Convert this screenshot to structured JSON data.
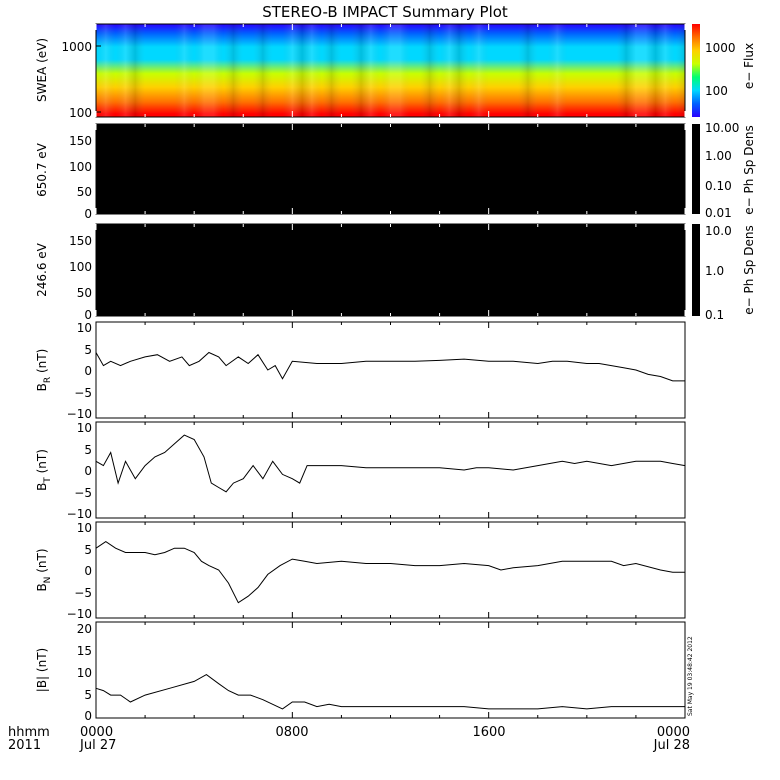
{
  "title": "STEREO-B IMPACT Summary Plot",
  "timestamp": "Sat May 19 03:48:42 2012",
  "time_axis": {
    "label_top": "hhmm",
    "label_bottom": "2011",
    "range_hours": [
      0,
      24
    ],
    "ticks": [
      {
        "hour": 0,
        "time": "0000",
        "date": "Jul 27"
      },
      {
        "hour": 8,
        "time": "0800",
        "date": ""
      },
      {
        "hour": 16,
        "time": "1600",
        "date": ""
      },
      {
        "hour": 24,
        "time": "0000",
        "date": "Jul 28"
      }
    ]
  },
  "colors": {
    "flux_scale": [
      "#2a00ff",
      "#0060ff",
      "#00d8ff",
      "#00ff70",
      "#c8ff00",
      "#ffd000",
      "#ff7000",
      "#ff0000"
    ],
    "spectrogram_bg": "#000000",
    "line": "#000000"
  },
  "panels": {
    "swea": {
      "ylabel": "SWEA (eV)",
      "yticks": [
        "1000",
        "100"
      ],
      "colorbar_label": "e− Flux",
      "colorbar_ticks": [
        "1000",
        "100"
      ]
    },
    "pad650": {
      "ylabel": "650.7 eV",
      "yticks": [
        "150",
        "100",
        "50",
        "0"
      ],
      "colorbar_label": "e− Ph Sp Dens",
      "colorbar_ticks": [
        "10.00",
        "1.00",
        "0.10",
        "0.01"
      ]
    },
    "pad246": {
      "ylabel": "246.6 eV",
      "yticks": [
        "150",
        "100",
        "50",
        "0"
      ],
      "colorbar_label": "e− Ph Sp Dens",
      "colorbar_ticks": [
        "10.0",
        "1.0",
        "0.1"
      ]
    },
    "br": {
      "ylabel_main": "B",
      "ylabel_sub": "R",
      "ylabel_unit": " (nT)",
      "yticks": [
        "10",
        "5",
        "0",
        "−5",
        "−10"
      ]
    },
    "bt": {
      "ylabel_main": "B",
      "ylabel_sub": "T",
      "ylabel_unit": " (nT)",
      "yticks": [
        "10",
        "5",
        "0",
        "−5",
        "−10"
      ]
    },
    "bn": {
      "ylabel_main": "B",
      "ylabel_sub": "N",
      "ylabel_unit": " (nT)",
      "yticks": [
        "10",
        "5",
        "0",
        "−5",
        "−10"
      ]
    },
    "bmag": {
      "ylabel": "|B| (nT)",
      "yticks": [
        "20",
        "15",
        "10",
        "5",
        "0"
      ]
    }
  },
  "chart_data": [
    {
      "type": "heatmap",
      "title": "STEREO-B IMPACT Summary Plot",
      "ylabel": "SWEA (eV)",
      "yscale": "log",
      "ylim": [
        90,
        2200
      ],
      "xlim": [
        0,
        24
      ],
      "colorbar": {
        "label": "e− Flux",
        "scale": "log",
        "range": [
          40,
          4000
        ]
      },
      "hours": [
        0,
        0.5,
        1,
        1.5,
        2,
        2.5,
        3,
        3.5,
        4,
        4.5,
        5,
        5.5,
        6,
        6.5,
        7,
        7.5,
        8,
        8.5,
        9,
        9.5,
        10,
        10.5,
        11,
        11.5,
        12,
        12.5,
        13,
        13.5,
        14,
        14.5,
        15,
        15.5,
        16,
        16.5,
        17,
        17.5,
        18,
        18.5,
        19,
        19.5,
        20,
        20.5,
        21,
        21.5,
        22,
        22.5,
        23,
        23.5,
        24
      ],
      "energy_eV": [
        100,
        150,
        250,
        400,
        650,
        1000,
        1600,
        2200
      ],
      "note_flux": "relative flux drawn per energy, high at low energies",
      "flux_by_energy": [
        3000,
        1800,
        900,
        400,
        200,
        110,
        60,
        45
      ]
    },
    {
      "type": "heatmap",
      "ylabel": "650.7 eV",
      "ylim": [
        0,
        180
      ],
      "xlim": [
        0,
        24
      ],
      "colorbar": {
        "label": "e− Ph Sp Dens",
        "scale": "log",
        "range": [
          0.01,
          10
        ]
      },
      "values": "no data (uniform black)"
    },
    {
      "type": "heatmap",
      "ylabel": "246.6 eV",
      "ylim": [
        0,
        180
      ],
      "xlim": [
        0,
        24
      ],
      "colorbar": {
        "label": "e− Ph Sp Dens",
        "scale": "log",
        "range": [
          0.1,
          10
        ]
      },
      "values": "no data (uniform black)"
    },
    {
      "type": "line",
      "ylabel": "B_R (nT)",
      "ylim": [
        -11,
        11
      ],
      "xlim": [
        0,
        24
      ],
      "x": [
        0,
        0.3,
        0.6,
        1,
        1.4,
        2,
        2.5,
        3,
        3.5,
        3.8,
        4.2,
        4.6,
        5,
        5.3,
        5.8,
        6.2,
        6.6,
        7,
        7.3,
        7.6,
        8,
        9,
        10,
        11,
        12,
        13,
        14,
        15,
        16,
        17,
        18,
        18.6,
        19.2,
        20,
        20.5,
        21,
        21.5,
        22,
        22.5,
        23,
        23.5,
        24
      ],
      "y": [
        4,
        1,
        2,
        1,
        2,
        3,
        3.5,
        2,
        3,
        1,
        2,
        4,
        3,
        1,
        3,
        1.5,
        3.5,
        0,
        1,
        -2,
        2,
        1.5,
        1.5,
        2,
        2,
        2,
        2.2,
        2.5,
        2,
        2,
        1.5,
        2,
        2,
        1.5,
        1.5,
        1,
        0.5,
        0,
        -1,
        -1.5,
        -2.5,
        -2.5
      ]
    },
    {
      "type": "line",
      "ylabel": "B_T (nT)",
      "ylim": [
        -11,
        11
      ],
      "xlim": [
        0,
        24
      ],
      "x": [
        0,
        0.3,
        0.6,
        0.9,
        1.2,
        1.6,
        2,
        2.4,
        2.8,
        3.2,
        3.6,
        4,
        4.4,
        4.7,
        5,
        5.3,
        5.6,
        6,
        6.4,
        6.8,
        7.2,
        7.6,
        8,
        8.3,
        8.6,
        9,
        9.5,
        10,
        11,
        12,
        13,
        14,
        15,
        15.5,
        16,
        17,
        18,
        19,
        19.5,
        20,
        21,
        22,
        23,
        23.5,
        24
      ],
      "y": [
        2,
        1,
        4,
        -3,
        2,
        -2,
        1,
        3,
        4,
        6,
        8,
        7,
        3,
        -3,
        -4,
        -5,
        -3,
        -2,
        1,
        -2,
        2,
        -1,
        -2,
        -3,
        1,
        1,
        1,
        1,
        0.5,
        0.5,
        0.5,
        0.5,
        0,
        0.5,
        0.5,
        0,
        1,
        2,
        1.5,
        2,
        1,
        2,
        2,
        1.5,
        1
      ]
    },
    {
      "type": "line",
      "ylabel": "B_N (nT)",
      "ylim": [
        -11,
        11
      ],
      "xlim": [
        0,
        24
      ],
      "x": [
        0,
        0.4,
        0.8,
        1.2,
        1.6,
        2,
        2.4,
        2.8,
        3.2,
        3.6,
        4,
        4.3,
        4.6,
        5,
        5.4,
        5.8,
        6.2,
        6.6,
        7,
        7.5,
        8,
        8.5,
        9,
        10,
        11,
        12,
        13,
        14,
        15,
        16,
        16.5,
        17,
        18,
        19,
        20,
        21,
        21.5,
        22,
        23,
        23.5,
        24
      ],
      "y": [
        5,
        6.5,
        5,
        4,
        4,
        4,
        3.5,
        4,
        5,
        5,
        4,
        2,
        1,
        0,
        -3,
        -7.5,
        -6,
        -4,
        -1,
        1,
        2.5,
        2,
        1.5,
        2,
        1.5,
        1.5,
        1,
        1,
        1.5,
        1,
        0,
        0.5,
        1,
        2,
        2,
        2,
        1,
        1.5,
        0,
        -0.5,
        -0.5
      ]
    },
    {
      "type": "line",
      "ylabel": "|B| (nT)",
      "ylim": [
        0,
        21
      ],
      "xlim": [
        0,
        24
      ],
      "x": [
        0,
        0.3,
        0.6,
        1,
        1.4,
        2,
        3,
        4,
        4.5,
        5,
        5.4,
        5.8,
        6.3,
        6.8,
        7.2,
        7.6,
        8,
        8.5,
        9,
        9.5,
        10,
        11,
        12,
        13,
        14,
        15,
        16,
        17,
        18,
        19,
        20,
        21,
        22,
        23,
        24
      ],
      "y": [
        6.5,
        6,
        5,
        5,
        3.5,
        5,
        6.5,
        8,
        9.5,
        7.5,
        6,
        5,
        5,
        4,
        3,
        2,
        3.5,
        3.5,
        2.5,
        3,
        2.5,
        2.5,
        2.5,
        2.5,
        2.5,
        2.5,
        2,
        2,
        2,
        2.5,
        2,
        2.5,
        2.5,
        2.5,
        2.5
      ]
    }
  ]
}
